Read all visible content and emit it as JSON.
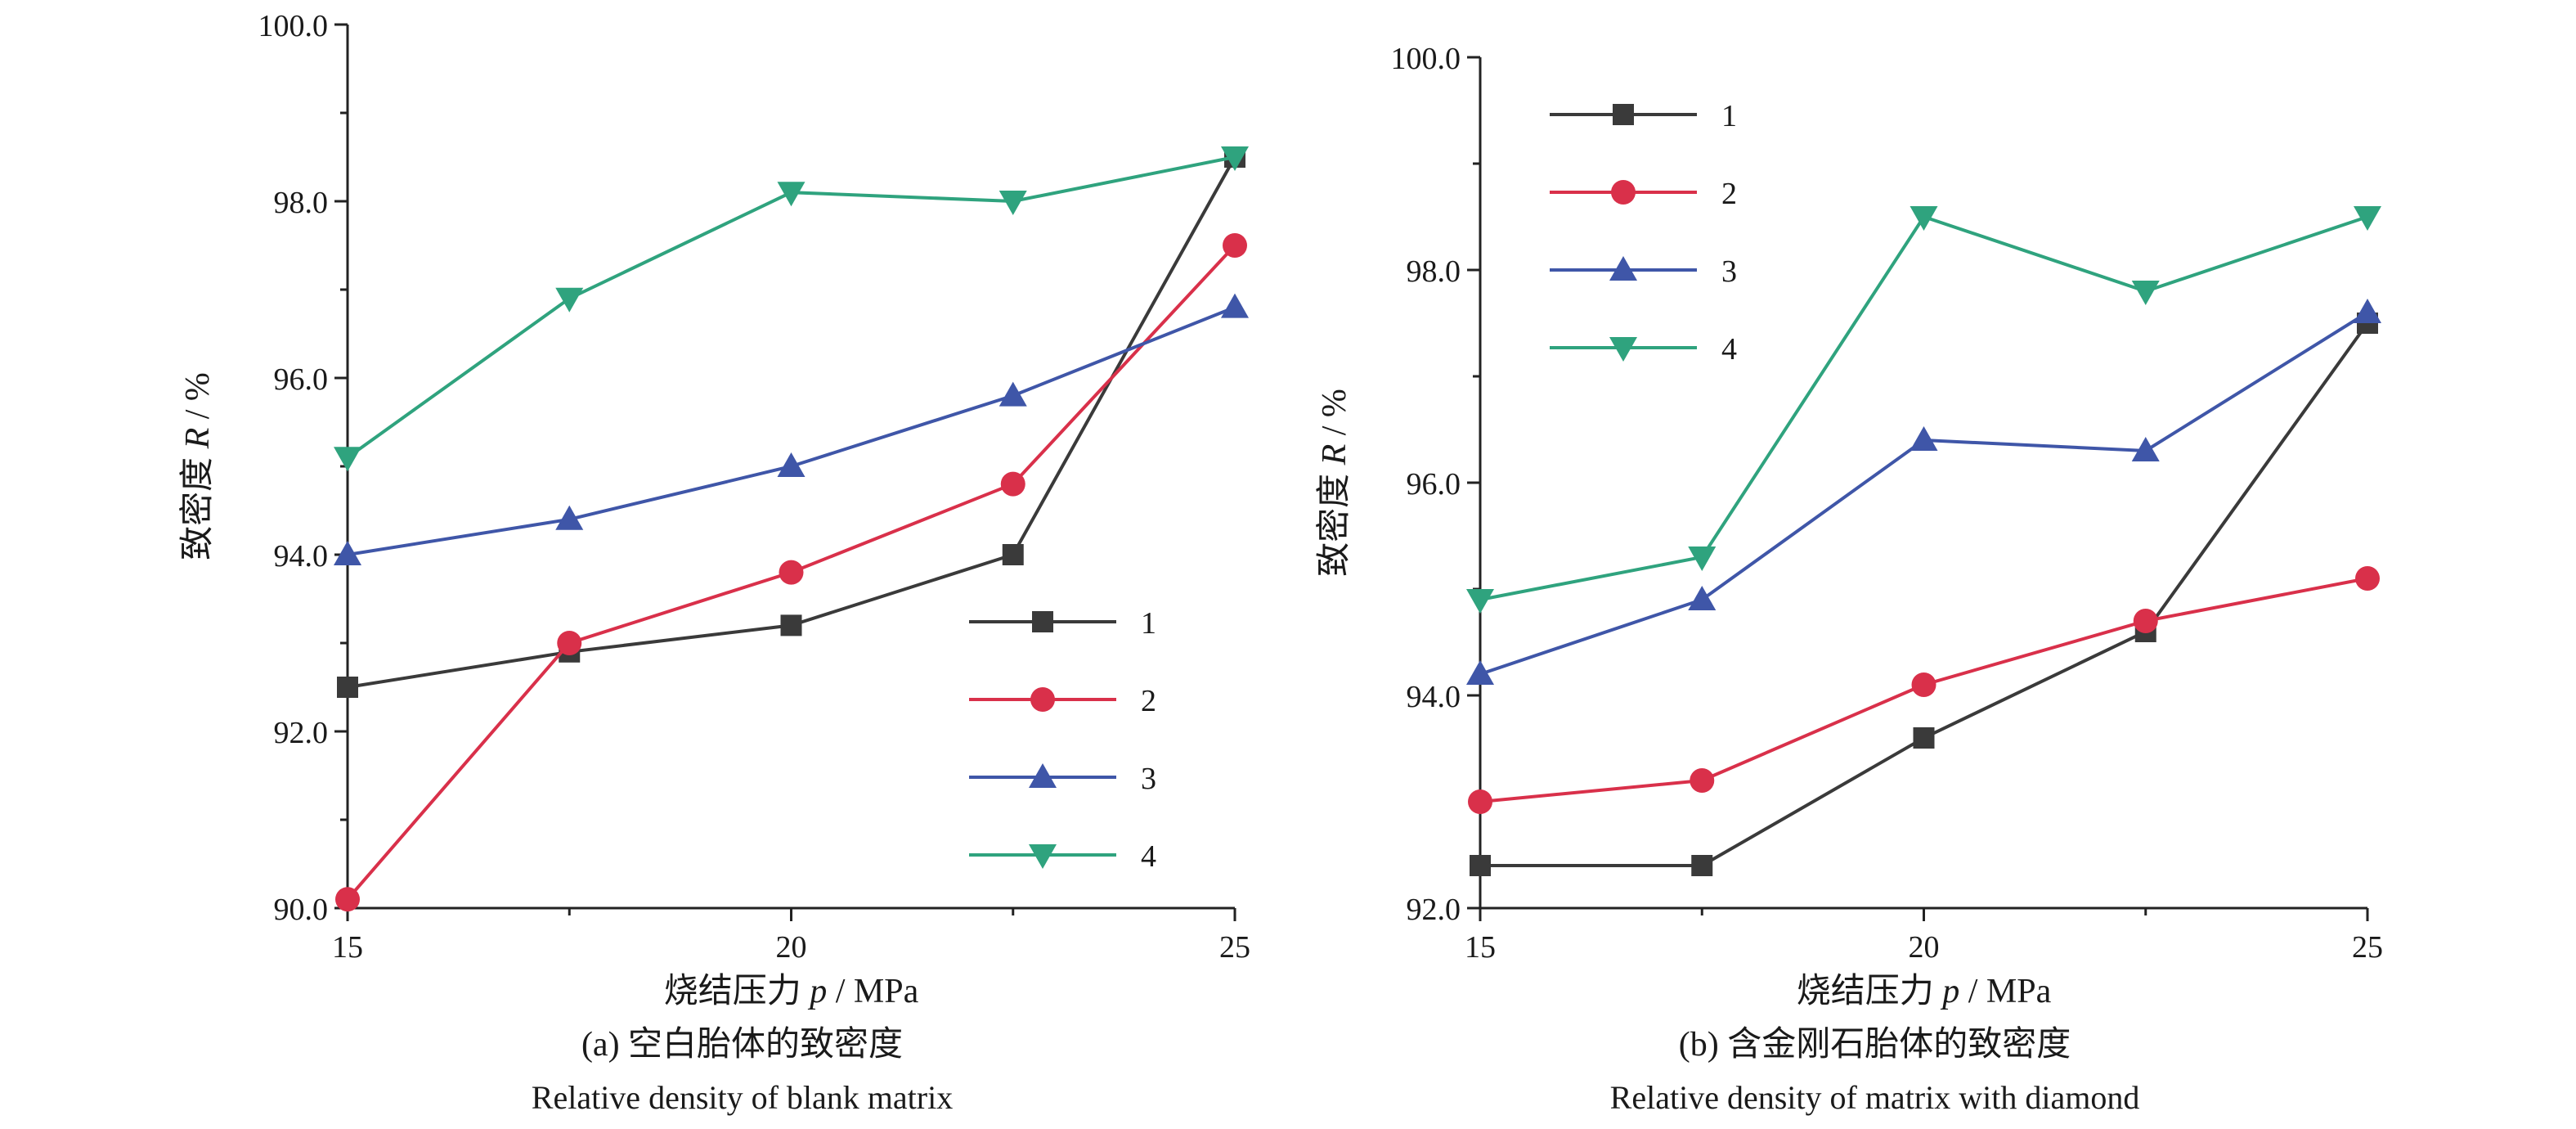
{
  "chart_data": [
    {
      "type": "line",
      "x": [
        15,
        17.5,
        20,
        22.5,
        25
      ],
      "xticks": [
        "15",
        "20",
        "25"
      ],
      "xlim": [
        15,
        25
      ],
      "ylim": [
        90,
        100
      ],
      "yticks": [
        "90.0",
        "92.0",
        "94.0",
        "96.0",
        "98.0",
        "100.0"
      ],
      "xlabel": {
        "prefix": "烧结压力 ",
        "var": "p",
        "suffix": " / MPa"
      },
      "ylabel": {
        "prefix": "致密度 ",
        "var": "R",
        "suffix": " / %"
      },
      "caption": "(a) 空白胎体的致密度",
      "caption_en": "Relative density of blank matrix",
      "legend_position": "bottom-right",
      "series": [
        {
          "name": "1",
          "color": "#3a3a3a",
          "marker": "square",
          "values": [
            92.5,
            92.9,
            93.2,
            94.0,
            98.5
          ]
        },
        {
          "name": "2",
          "color": "#d9304a",
          "marker": "circle",
          "values": [
            90.1,
            93.0,
            93.8,
            94.8,
            97.5
          ]
        },
        {
          "name": "3",
          "color": "#3f56a8",
          "marker": "triangle-up",
          "values": [
            94.0,
            94.4,
            95.0,
            95.8,
            96.8
          ]
        },
        {
          "name": "4",
          "color": "#2fa37e",
          "marker": "triangle-down",
          "values": [
            95.1,
            96.9,
            98.1,
            98.0,
            98.5
          ]
        }
      ]
    },
    {
      "type": "line",
      "x": [
        15,
        17.5,
        20,
        22.5,
        25
      ],
      "xticks": [
        "15",
        "20",
        "25"
      ],
      "xlim": [
        15,
        25
      ],
      "ylim": [
        92,
        100
      ],
      "yticks": [
        "92.0",
        "94.0",
        "96.0",
        "98.0",
        "100.0"
      ],
      "xlabel": {
        "prefix": "烧结压力 ",
        "var": "p",
        "suffix": " / MPa"
      },
      "ylabel": {
        "prefix": "致密度 ",
        "var": "R",
        "suffix": " / %"
      },
      "caption": "(b) 含金刚石胎体的致密度",
      "caption_en": "Relative density of matrix with diamond",
      "legend_position": "top-left",
      "series": [
        {
          "name": "1",
          "color": "#3a3a3a",
          "marker": "square",
          "values": [
            92.4,
            92.4,
            93.6,
            94.6,
            97.5
          ]
        },
        {
          "name": "2",
          "color": "#d9304a",
          "marker": "circle",
          "values": [
            93.0,
            93.2,
            94.1,
            94.7,
            95.1
          ]
        },
        {
          "name": "3",
          "color": "#3f56a8",
          "marker": "triangle-up",
          "values": [
            94.2,
            94.9,
            96.4,
            96.3,
            97.6
          ]
        },
        {
          "name": "4",
          "color": "#2fa37e",
          "marker": "triangle-down",
          "values": [
            94.9,
            95.3,
            98.5,
            97.8,
            98.5
          ]
        }
      ]
    }
  ]
}
